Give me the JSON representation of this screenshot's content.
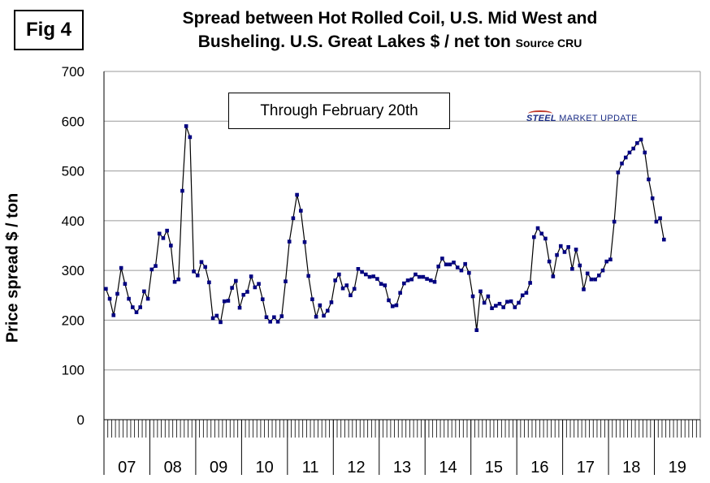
{
  "fig_label": "Fig 4",
  "chart_data": {
    "type": "line",
    "title_line1": "Spread between Hot Rolled Coil, U.S. Mid West and",
    "title_line2": "Busheling. U.S. Great Lakes  $ / net ton",
    "title_source": "Source CRU",
    "ylabel": "Price spread $ / ton",
    "xlabel": "",
    "ylim": [
      0,
      700
    ],
    "yticks": [
      0,
      100,
      200,
      300,
      400,
      500,
      600,
      700
    ],
    "grid": true,
    "series_color": "#000080",
    "year_labels": [
      "07",
      "08",
      "09",
      "10",
      "11",
      "12",
      "13",
      "14",
      "15",
      "16",
      "17",
      "18",
      "19"
    ],
    "annotation": "Through February 20th",
    "logo": {
      "steel": "STEEL",
      "rest": " MARKET UPDATE"
    },
    "series": [
      {
        "name": "HRC minus Busheling spread",
        "values": [
          263,
          243,
          210,
          253,
          305,
          273,
          243,
          226,
          216,
          226,
          258,
          243,
          302,
          309,
          374,
          365,
          380,
          350,
          277,
          282,
          460,
          590,
          568,
          298,
          290,
          317,
          307,
          276,
          204,
          209,
          196,
          238,
          239,
          265,
          279,
          225,
          251,
          257,
          288,
          266,
          273,
          242,
          206,
          197,
          206,
          197,
          208,
          278,
          358,
          405,
          452,
          420,
          357,
          289,
          242,
          207,
          230,
          209,
          219,
          236,
          280,
          292,
          264,
          270,
          250,
          263,
          303,
          297,
          292,
          287,
          288,
          283,
          273,
          270,
          240,
          228,
          230,
          255,
          274,
          280,
          282,
          292,
          287,
          287,
          283,
          280,
          277,
          308,
          324,
          312,
          312,
          316,
          306,
          300,
          313,
          295,
          248,
          180,
          258,
          235,
          248,
          224,
          229,
          233,
          226,
          237,
          238,
          226,
          235,
          250,
          255,
          275,
          367,
          385,
          374,
          364,
          318,
          288,
          331,
          349,
          337,
          347,
          303,
          342,
          310,
          262,
          294,
          282,
          282,
          290,
          300,
          318,
          322,
          398,
          497,
          515,
          527,
          537,
          545,
          556,
          563,
          537,
          483,
          445,
          398,
          405,
          362
        ]
      }
    ]
  }
}
